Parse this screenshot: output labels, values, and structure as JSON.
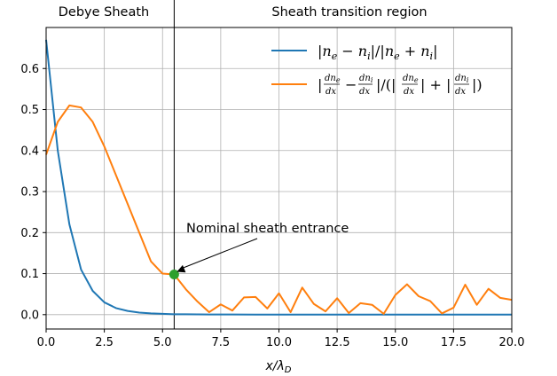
{
  "chart_data": {
    "type": "line",
    "xlabel": "x/λ_D",
    "ylabel": "",
    "xlim": [
      0,
      20
    ],
    "ylim": [
      -0.035,
      0.7
    ],
    "xticks": [
      0,
      2.5,
      5,
      7.5,
      10,
      12.5,
      15,
      17.5,
      20
    ],
    "xtick_labels": [
      "0.0",
      "2.5",
      "5.0",
      "7.5",
      "10.0",
      "12.5",
      "15.0",
      "17.5",
      "20.0"
    ],
    "yticks": [
      0,
      0.1,
      0.2,
      0.3,
      0.4,
      0.5,
      0.6
    ],
    "ytick_labels": [
      "0.0",
      "0.1",
      "0.2",
      "0.3",
      "0.4",
      "0.5",
      "0.6"
    ],
    "grid": true,
    "legend_position": "top-right",
    "regions": [
      {
        "label": "Debye Sheath",
        "x_start": 0,
        "x_end": 5.5
      },
      {
        "label": "Sheath transition region",
        "x_start": 5.5,
        "x_end": 20
      }
    ],
    "region_boundary_x": 5.5,
    "series": [
      {
        "name": "|n_e − n_i|/|n_e + n_i|",
        "color": "#1f77b4",
        "x": [
          0,
          0.5,
          1,
          1.5,
          2,
          2.5,
          3,
          3.5,
          4,
          4.5,
          5,
          5.5,
          6,
          7,
          8,
          9,
          10,
          11,
          12,
          13,
          14,
          15,
          16,
          17,
          18,
          19,
          20
        ],
        "y": [
          0.67,
          0.4,
          0.22,
          0.11,
          0.058,
          0.03,
          0.016,
          0.009,
          0.005,
          0.003,
          0.002,
          0.001,
          0.001,
          0.0005,
          0.0003,
          0.0002,
          0.0001,
          0.0001,
          0,
          0,
          0,
          0,
          0,
          0,
          0,
          0,
          0
        ]
      },
      {
        "name": "|dn_e/dx − dn_i/dx|/(|dn_e/dx| + |dn_i/dx|)",
        "color": "#ff7f0e",
        "x": [
          0,
          0.5,
          1,
          1.5,
          2,
          2.5,
          3,
          3.5,
          4,
          4.5,
          5,
          5.5,
          6,
          6.5,
          7,
          7.5,
          8,
          8.5,
          9,
          9.5,
          10,
          10.5,
          11,
          11.5,
          12,
          12.5,
          13,
          13.5,
          14,
          14.5,
          15,
          15.5,
          16,
          16.5,
          17,
          17.5,
          18,
          18.5,
          19,
          19.5,
          20
        ],
        "y": [
          0.39,
          0.47,
          0.51,
          0.505,
          0.47,
          0.41,
          0.34,
          0.27,
          0.2,
          0.13,
          0.1,
          0.098,
          0.062,
          0.032,
          0.006,
          0.025,
          0.01,
          0.042,
          0.043,
          0.015,
          0.052,
          0.006,
          0.066,
          0.026,
          0.008,
          0.04,
          0.004,
          0.028,
          0.024,
          0.002,
          0.048,
          0.074,
          0.045,
          0.033,
          0.003,
          0.017,
          0.073,
          0.024,
          0.063,
          0.041,
          0.036
        ]
      }
    ],
    "marker": {
      "x": 5.5,
      "y": 0.098,
      "color": "#2ca02c"
    },
    "annotation": {
      "text": "Nominal sheath entrance",
      "x": 5.5,
      "y": 0.098
    }
  }
}
